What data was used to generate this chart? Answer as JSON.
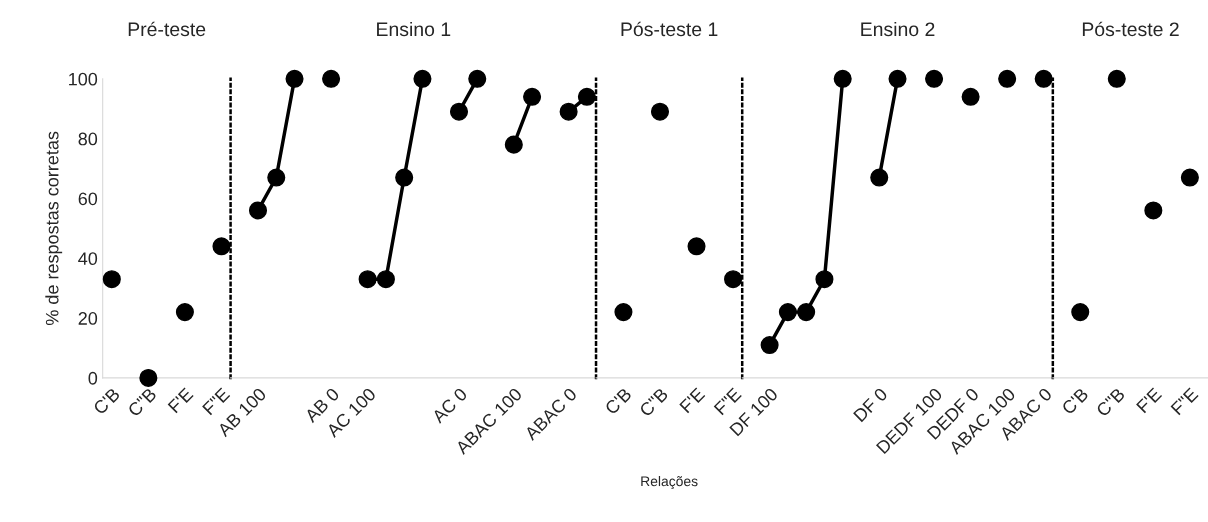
{
  "chart_data": [
    {
      "type": "scatter",
      "title": "Pré-teste",
      "ylabel": "% de respostas corretas",
      "marker": "circle",
      "line_style": "solid",
      "grid": false,
      "categories": [
        "C'B",
        null,
        "C\"B",
        null,
        "F'E",
        null,
        "F\"E"
      ],
      "series": [
        {
          "color": "#000000",
          "values": [
            33,
            null,
            0,
            null,
            22,
            null,
            44
          ]
        }
      ],
      "ylim": [
        0,
        100
      ],
      "yticks": [
        0,
        20,
        40,
        60,
        80,
        100
      ]
    },
    {
      "type": "line",
      "title": "Ensino 1",
      "marker": "circle",
      "line_style": "solid",
      "grid": false,
      "tick_labels": "x",
      "categories": [
        null,
        "AB 100",
        null,
        null,
        null,
        "AB 0",
        null,
        "AC 100",
        null,
        null,
        null,
        null,
        "AC 0",
        null,
        null,
        "ABAC 100",
        null,
        null,
        "ABAC 0",
        null
      ],
      "series": [
        {
          "color": "#000000",
          "values": [
            null,
            56,
            67,
            100,
            null,
            100,
            null,
            33,
            33,
            67,
            100,
            null,
            89,
            100,
            null,
            78,
            94,
            null,
            89,
            94
          ]
        }
      ],
      "ylim": [
        0,
        100
      ]
    },
    {
      "type": "scatter",
      "title": "Pós-teste 1",
      "xlabel": "Relações",
      "marker": "circle",
      "line_style": "solid",
      "grid": false,
      "tick_labels": "x",
      "categories": [
        null,
        "C'B",
        null,
        "C\"B",
        null,
        "F'E",
        null,
        "F\"E"
      ],
      "series": [
        {
          "color": "#000000",
          "values": [
            null,
            22,
            null,
            89,
            null,
            44,
            null,
            33
          ]
        }
      ],
      "ylim": [
        0,
        100
      ]
    },
    {
      "type": "line",
      "title": "Ensino 2",
      "marker": "circle",
      "line_style": "solid",
      "grid": false,
      "tick_labels": "x",
      "categories": [
        null,
        "DF 100",
        null,
        null,
        null,
        null,
        null,
        "DF 0",
        null,
        null,
        "DEDF 100",
        null,
        "DEDF 0",
        null,
        "ABAC 100",
        null,
        "ABAC 0"
      ],
      "series": [
        {
          "color": "#000000",
          "values": [
            null,
            11,
            22,
            22,
            33,
            100,
            null,
            67,
            100,
            null,
            100,
            null,
            94,
            null,
            100,
            null,
            100
          ]
        }
      ],
      "ylim": [
        0,
        100
      ]
    },
    {
      "type": "scatter",
      "title": "Pós-teste 2",
      "marker": "circle",
      "line_style": "solid",
      "grid": false,
      "tick_labels": "x",
      "categories": [
        null,
        "C'B",
        null,
        "C\"B",
        null,
        "F'E",
        null,
        "F\"E"
      ],
      "series": [
        {
          "color": "#000000",
          "values": [
            null,
            22,
            null,
            100,
            null,
            56,
            null,
            67
          ]
        }
      ],
      "ylim": [
        0,
        100
      ]
    }
  ]
}
